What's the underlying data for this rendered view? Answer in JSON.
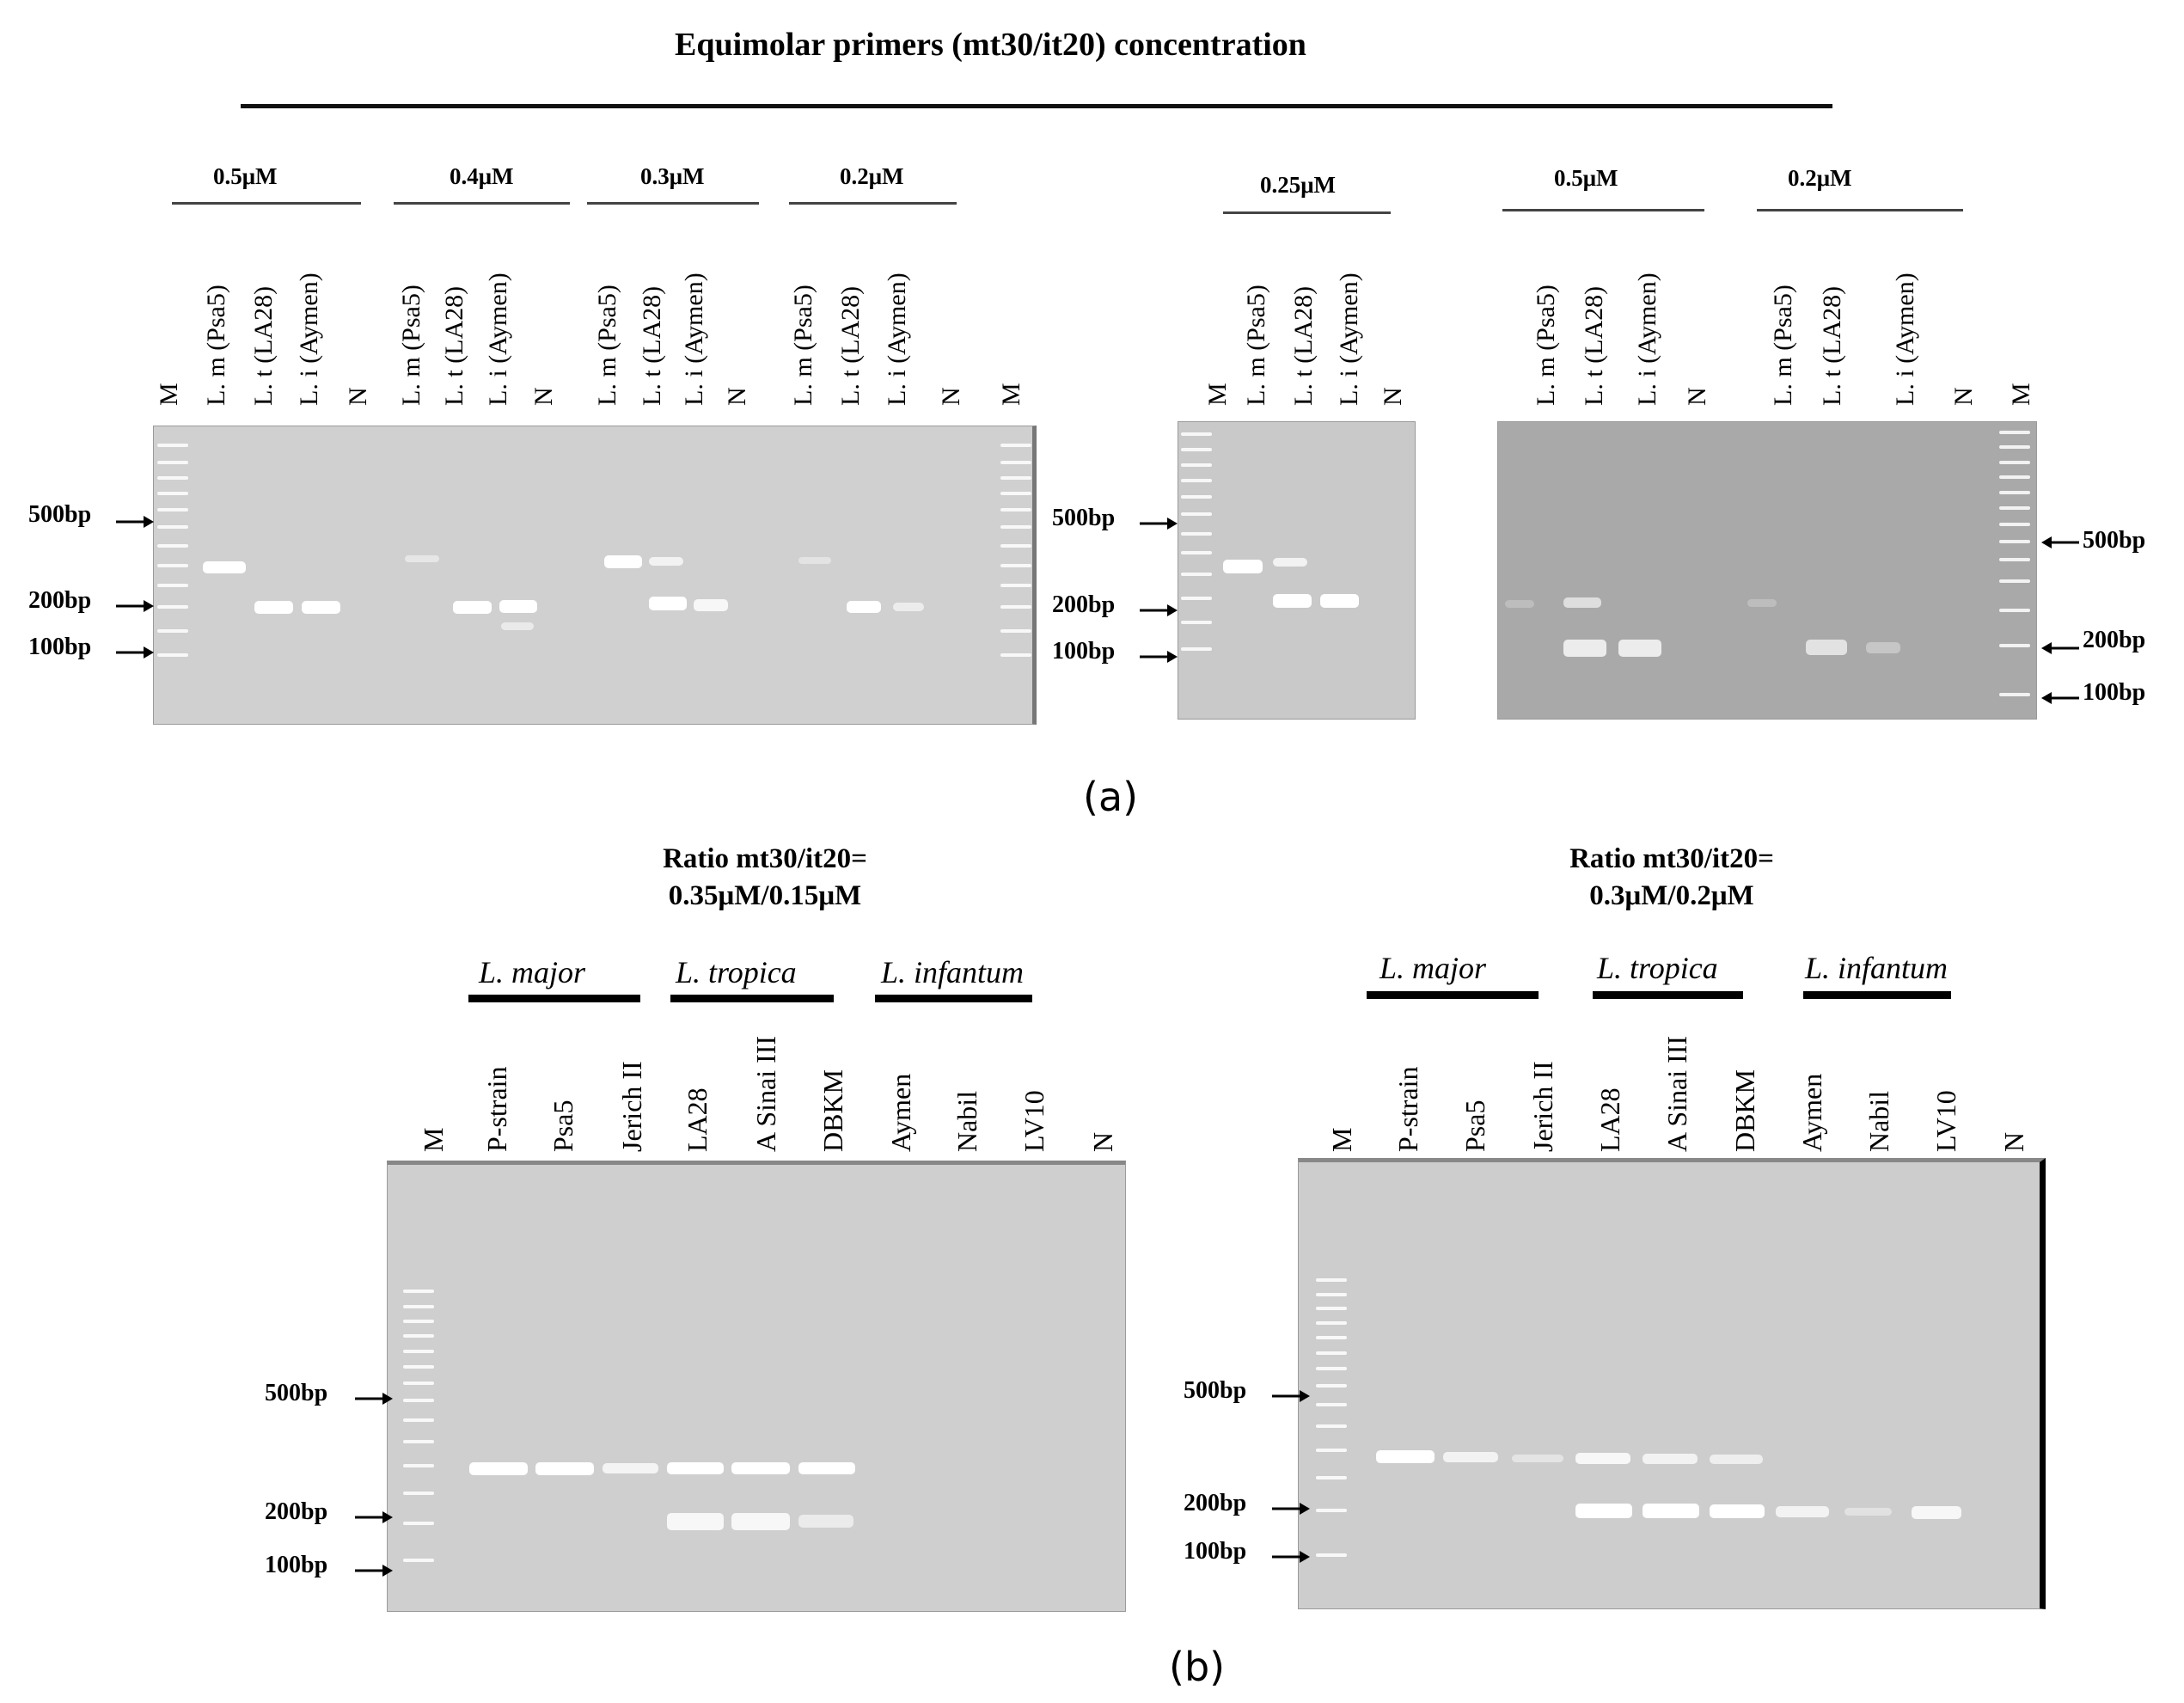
{
  "panel_a": {
    "title": "Equimolar primers (mt30/it20) concentration",
    "label": "(a)",
    "groups": {
      "g1": {
        "conc": "0.5μM",
        "lanes": [
          "L. m (Psa5)",
          "L. t (LA28)",
          "L. i (Aymen)",
          "N"
        ]
      },
      "g2": {
        "conc": "0.4μM",
        "lanes": [
          "L. m (Psa5)",
          "L. t (LA28)",
          "L. i (Aymen)",
          "N"
        ]
      },
      "g3": {
        "conc": "0.3μM",
        "lanes": [
          "L. m (Psa5)",
          "L. t (LA28)",
          "L. i (Aymen)",
          "N"
        ]
      },
      "g4": {
        "conc": "0.2μM",
        "lanes": [
          "L. m (Psa5)",
          "L. t (LA28)",
          "L. i (Aymen)",
          "N"
        ]
      },
      "g5": {
        "conc": "0.25μM",
        "lanes": [
          "L. m (Psa5)",
          "L. t (LA28)",
          "L. i (Aymen)",
          "N"
        ]
      },
      "g6": {
        "conc": "0.5μM",
        "lanes": [
          "L. m (Psa5)",
          "L. t (LA28)",
          "L. i (Aymen)",
          "N"
        ]
      },
      "g7": {
        "conc": "0.2μM",
        "lanes": [
          "L. m (Psa5)",
          "L. t (LA28)",
          "L. i (Aymen)",
          "N"
        ]
      }
    },
    "marker_lane": "M",
    "size_markers": [
      "500bp",
      "200bp",
      "100bp"
    ]
  },
  "panel_b": {
    "label": "(b)",
    "left": {
      "caption_line1": "Ratio mt30/it20=",
      "caption_line2": "0.35μM/0.15μM",
      "species": [
        "L. major",
        "L. tropica",
        "L. infantum"
      ],
      "lanes": [
        "M",
        "P-strain",
        "Psa5",
        "Jerich II",
        "LA28",
        "A Sinai III",
        "DBKM",
        "Aymen",
        "Nabil",
        "LV10",
        "N"
      ],
      "size_markers": [
        "500bp",
        "200bp",
        "100bp"
      ]
    },
    "right": {
      "caption_line1": "Ratio mt30/it20=",
      "caption_line2": "0.3μM/0.2μM",
      "species": [
        "L. major",
        "L. tropica",
        "L. infantum"
      ],
      "lanes": [
        "M",
        "P-strain",
        "Psa5",
        "Jerich II",
        "LA28",
        "A Sinai III",
        "DBKM",
        "Aymen",
        "Nabil",
        "LV10",
        "N"
      ],
      "size_markers": [
        "500bp",
        "200bp",
        "100bp"
      ]
    }
  }
}
